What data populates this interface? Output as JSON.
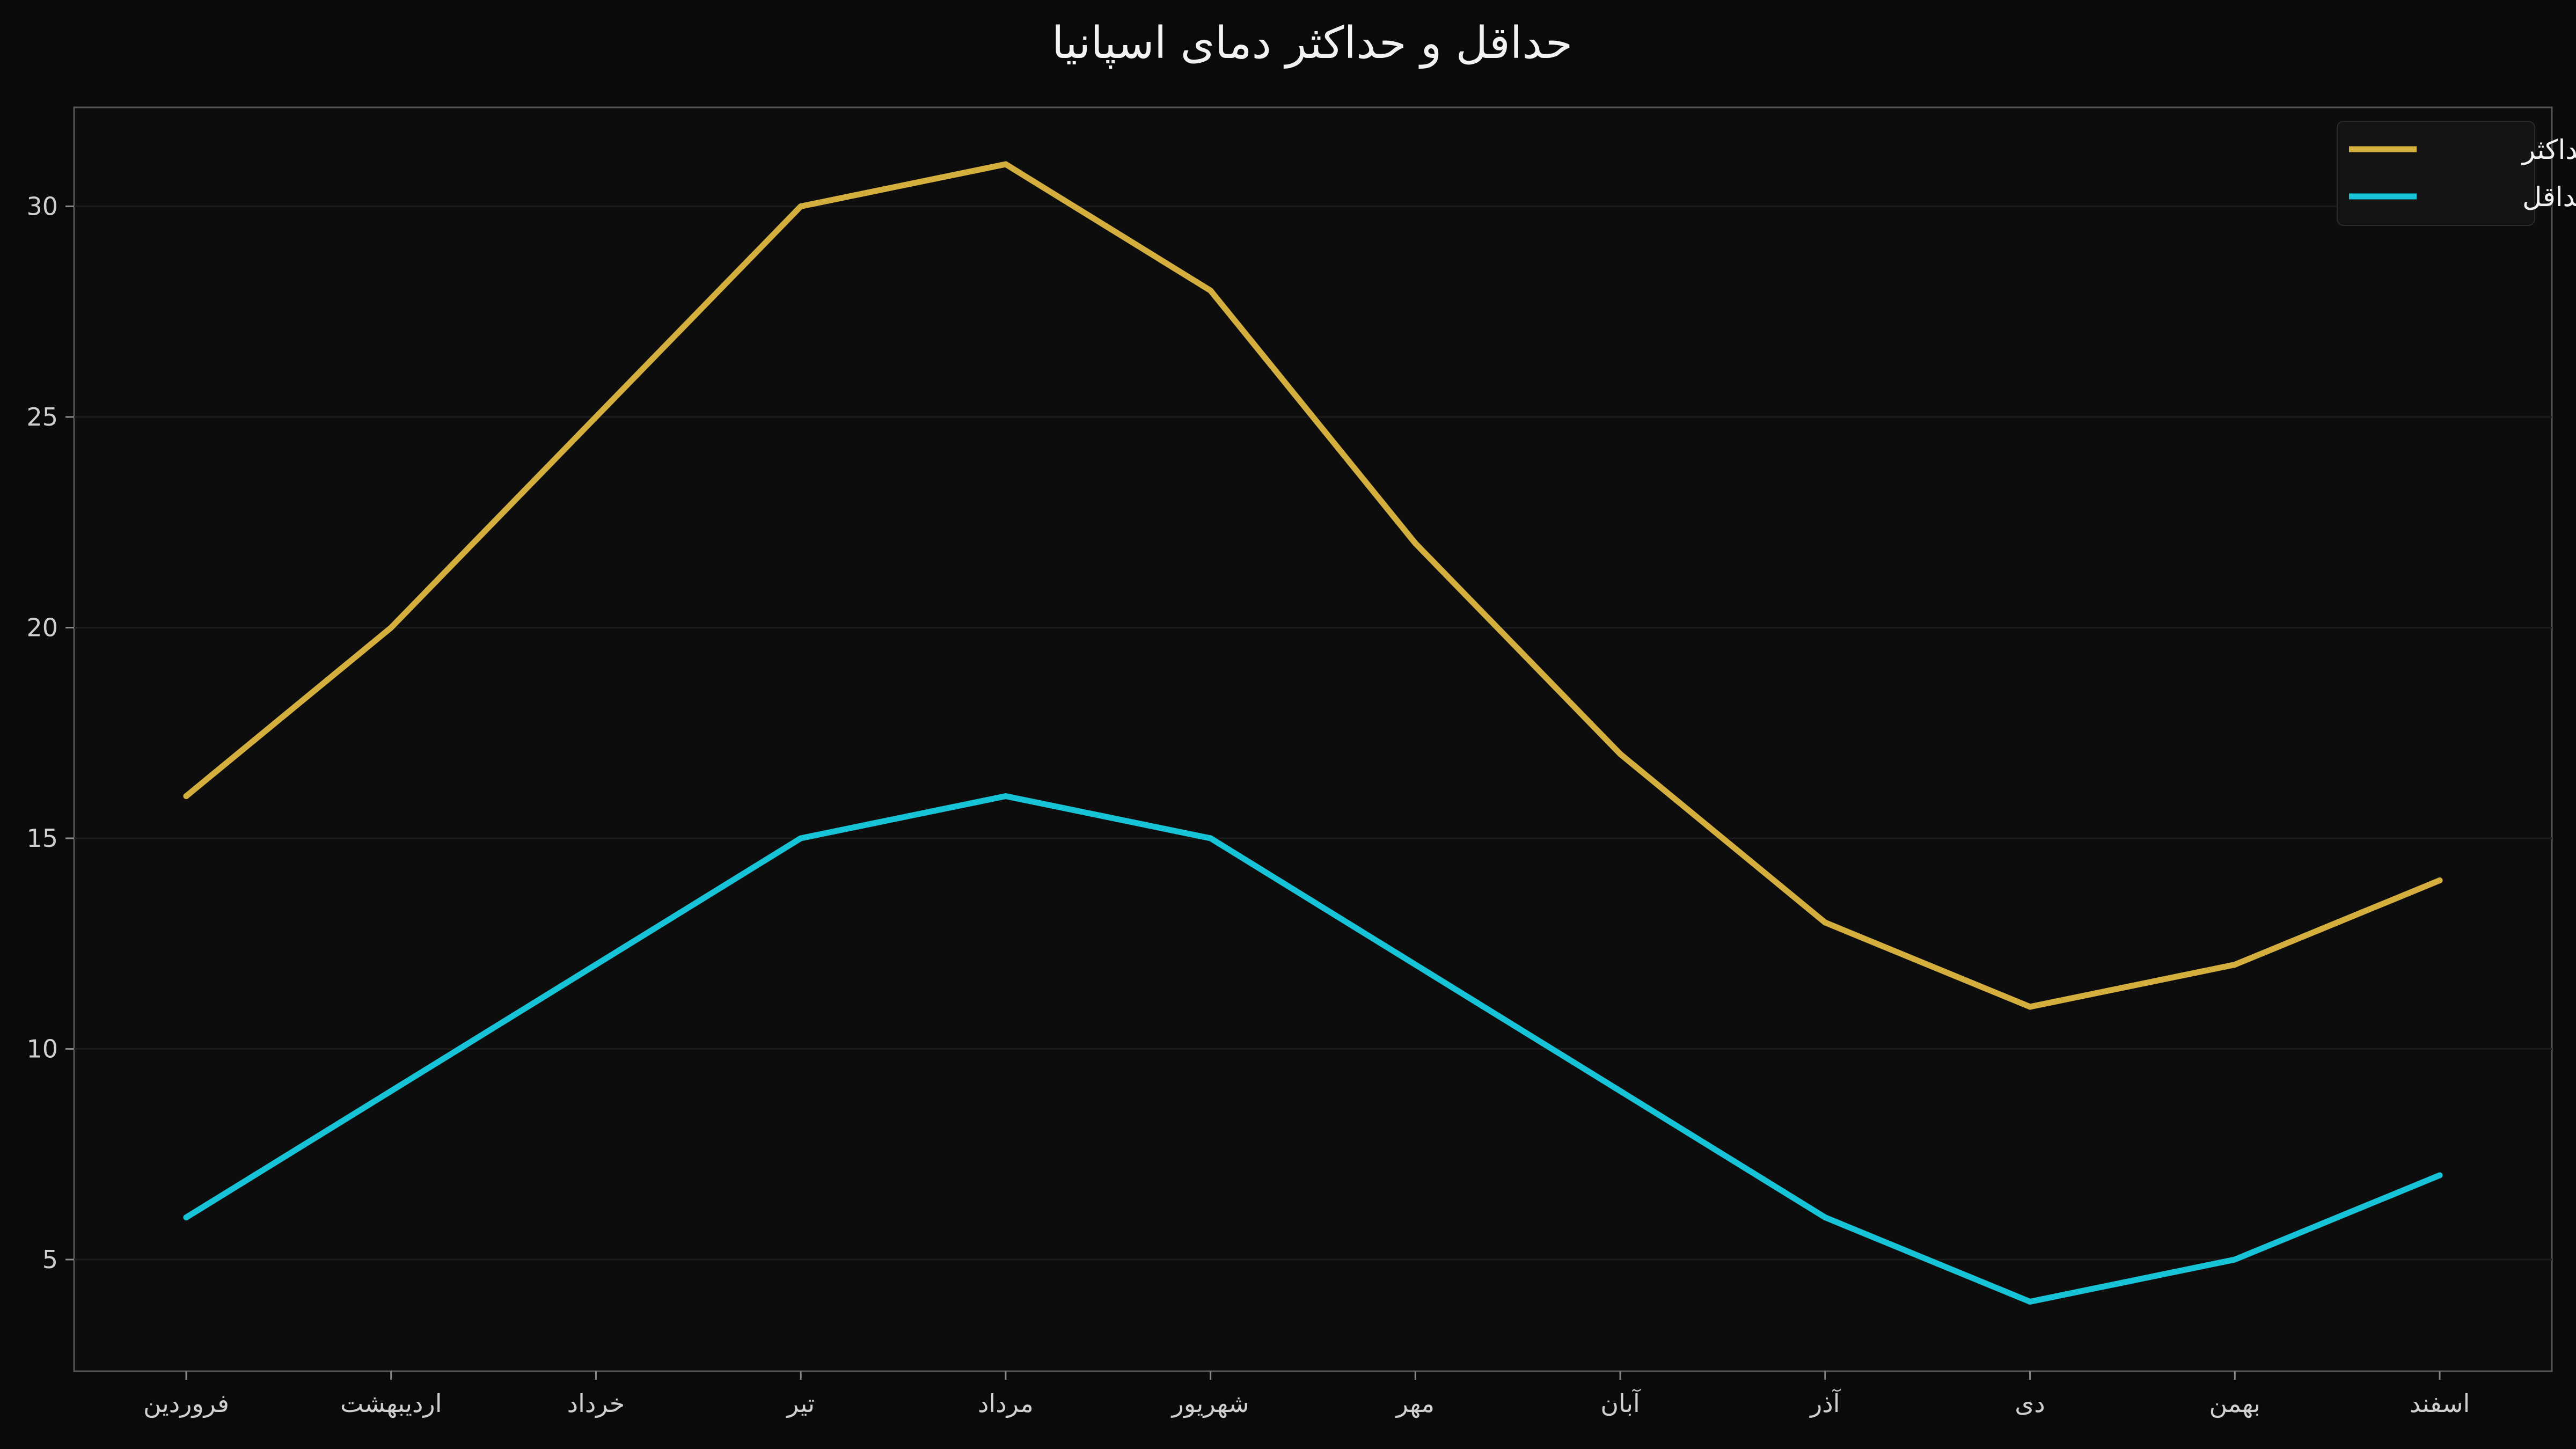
{
  "chart_data": {
    "type": "line",
    "title": "حداقل و حداکثر دمای اسپانیا",
    "xlabel": "",
    "ylabel": "",
    "categories": [
      "فروردین",
      "اردیبهشت",
      "خرداد",
      "تیر",
      "مرداد",
      "شهریور",
      "مهر",
      "آبان",
      "آذر",
      "دی",
      "بهمن",
      "اسفند"
    ],
    "series": [
      {
        "name": "حداکثر",
        "values": [
          16,
          20,
          25,
          30,
          31,
          28,
          22,
          17,
          13,
          11,
          12,
          14
        ],
        "color": "#d4af3d"
      },
      {
        "name": "حداقل",
        "values": [
          6,
          9,
          12,
          15,
          16,
          15,
          12,
          9,
          6,
          4,
          5,
          7
        ],
        "color": "#17c3d6"
      }
    ],
    "ylim": [
      2.35,
      32.35
    ],
    "yticks": [
      5,
      10,
      15,
      20,
      25,
      30
    ],
    "grid": true,
    "legend_position": "top-right",
    "colors": {
      "background": "#0a0a0a",
      "plot_background": "#0d0d0d",
      "axis": "#555555",
      "grid": "#1c1c1c"
    }
  }
}
